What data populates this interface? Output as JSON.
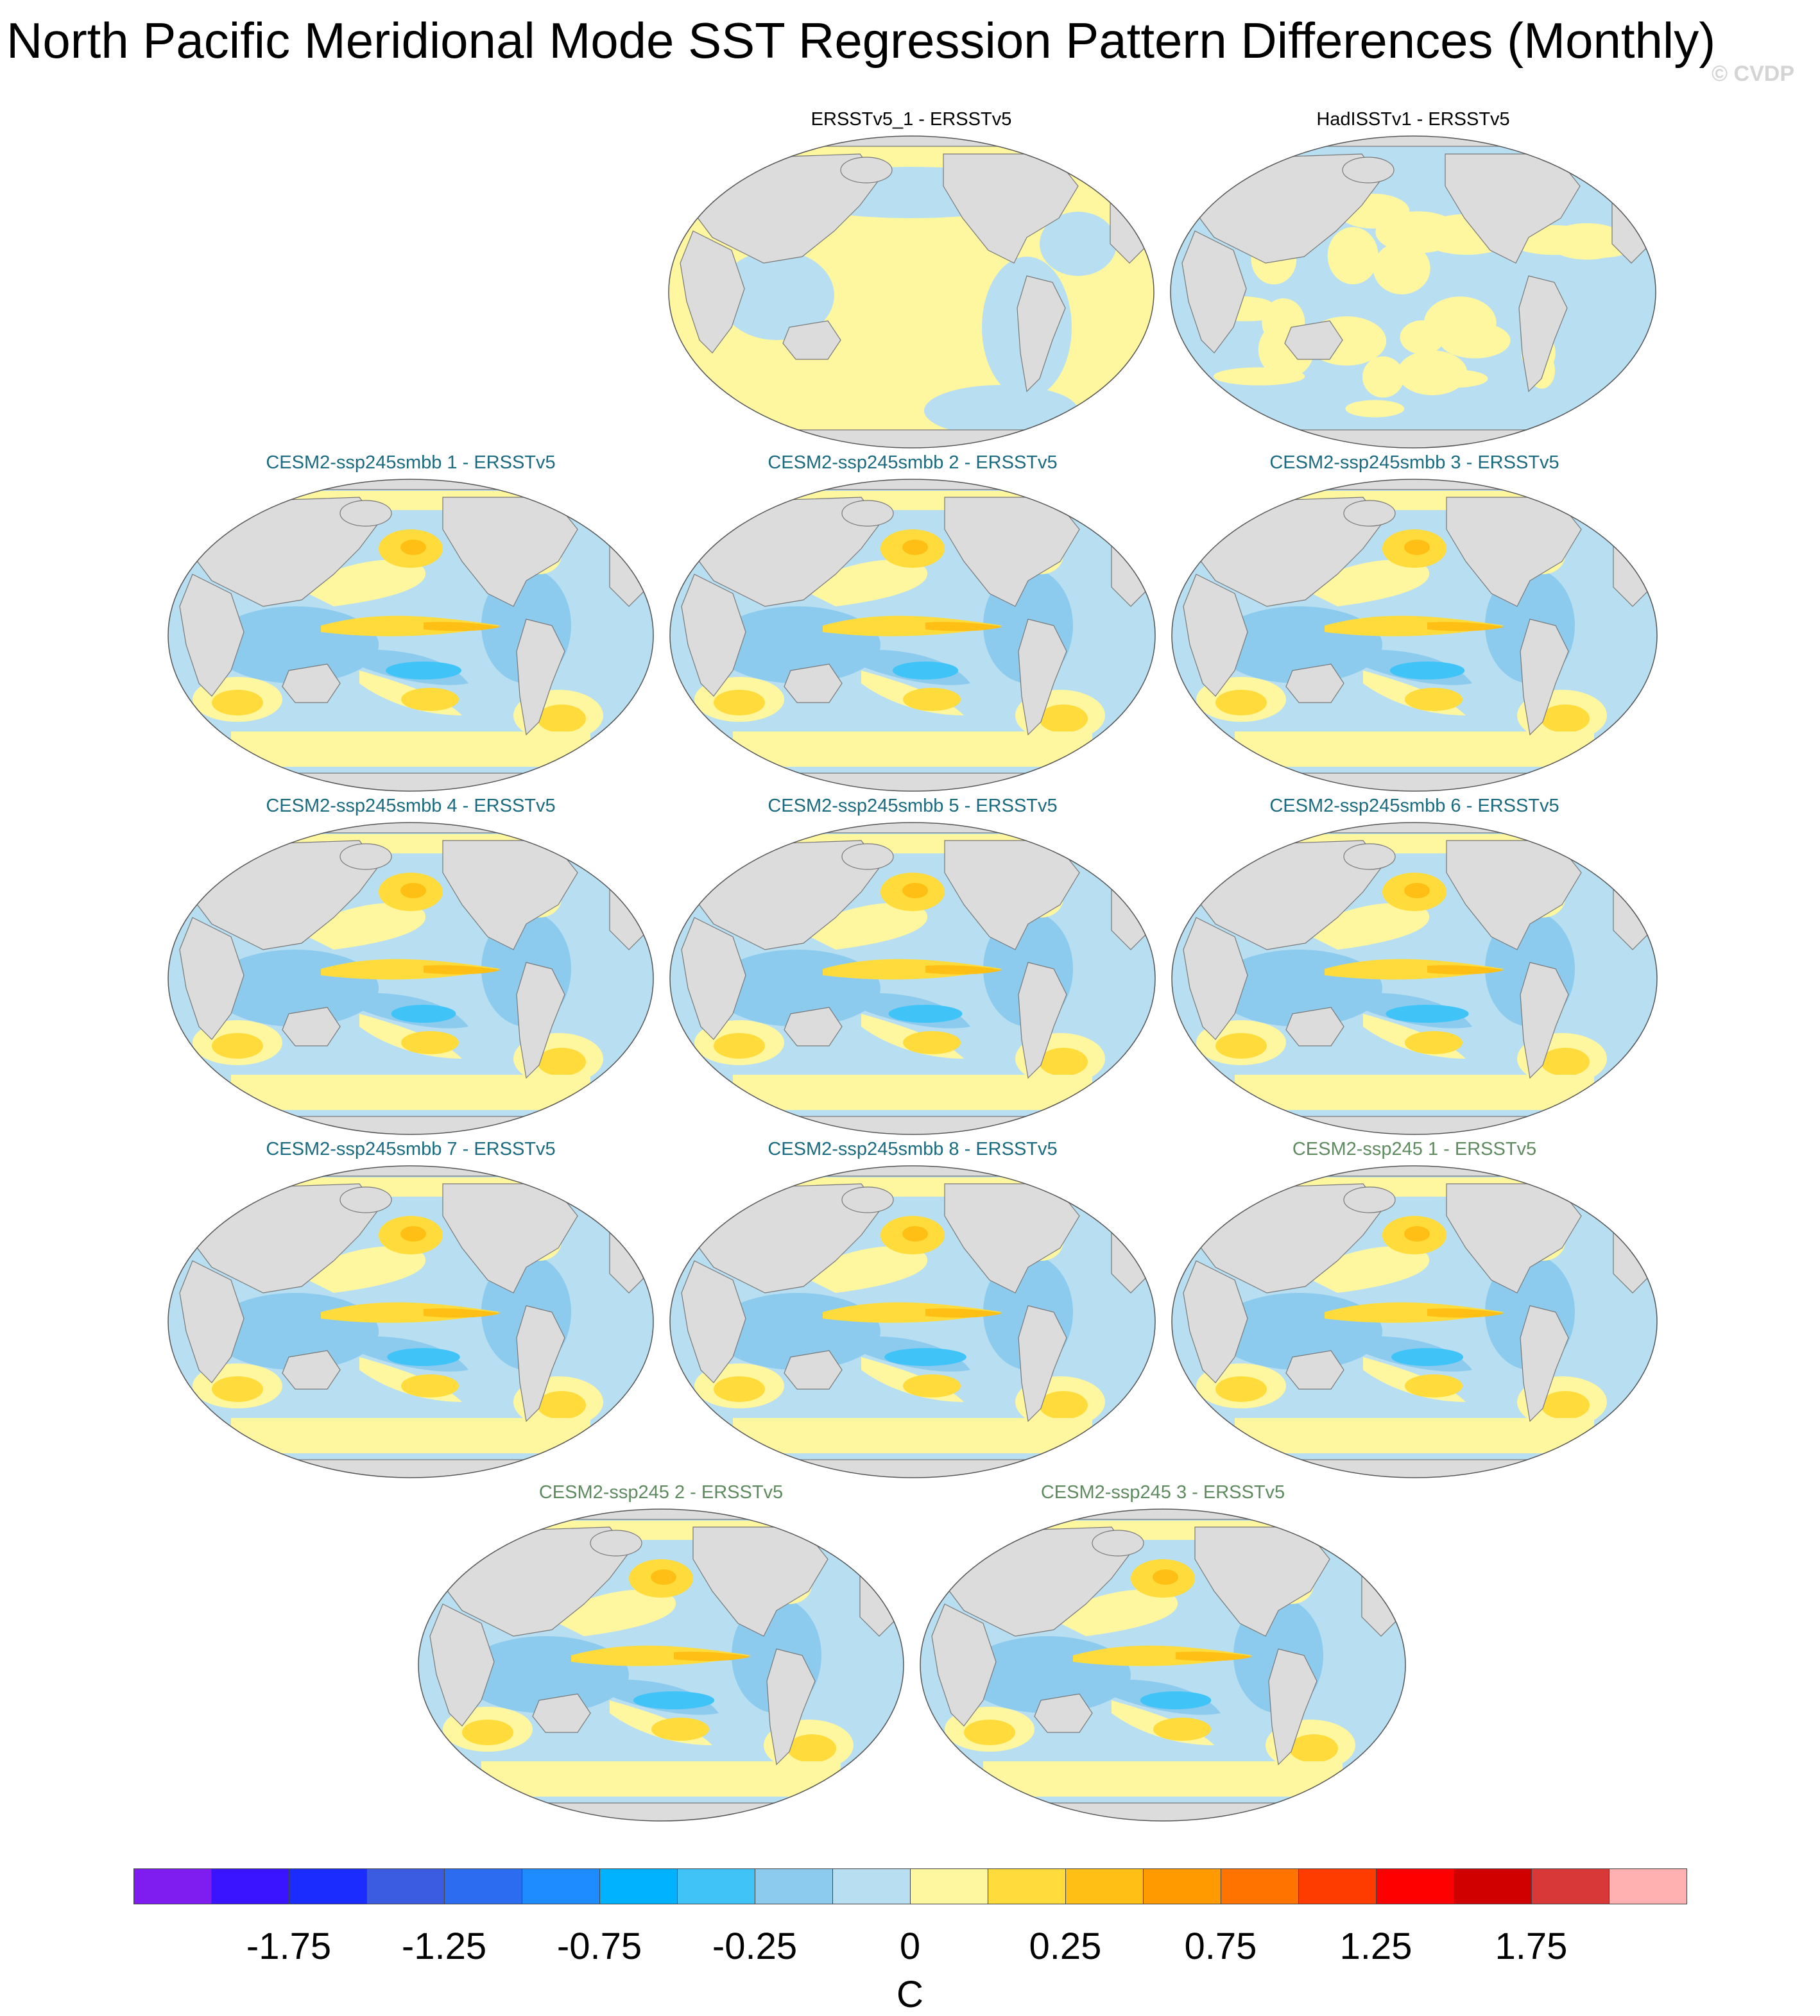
{
  "title": "North Pacific Meridional Mode SST Regression Pattern Differences (Monthly)",
  "watermark": "© CVDP",
  "colors": {
    "land": "#dcdcdc",
    "observed_title": "#000000",
    "smbb_title": "#1a6a80",
    "ssp245_title": "#5f8a5f"
  },
  "panels": [
    {
      "title": "ERSSTv5_1 - ERSSTv5",
      "group": "observed",
      "pattern": "flat_warm"
    },
    {
      "title": "HadISSTv1 - ERSSTv5",
      "group": "observed",
      "pattern": "patchy"
    },
    {
      "title": "CESM2-ssp245smbb 1 - ERSSTv5",
      "group": "smbb",
      "pattern": "npmm"
    },
    {
      "title": "CESM2-ssp245smbb 2 - ERSSTv5",
      "group": "smbb",
      "pattern": "npmm"
    },
    {
      "title": "CESM2-ssp245smbb 3 - ERSSTv5",
      "group": "smbb",
      "pattern": "npmm"
    },
    {
      "title": "CESM2-ssp245smbb 4 - ERSSTv5",
      "group": "smbb",
      "pattern": "npmm"
    },
    {
      "title": "CESM2-ssp245smbb 5 - ERSSTv5",
      "group": "smbb",
      "pattern": "npmm"
    },
    {
      "title": "CESM2-ssp245smbb 6 - ERSSTv5",
      "group": "smbb",
      "pattern": "npmm"
    },
    {
      "title": "CESM2-ssp245smbb 7 - ERSSTv5",
      "group": "smbb",
      "pattern": "npmm"
    },
    {
      "title": "CESM2-ssp245smbb 8 - ERSSTv5",
      "group": "smbb",
      "pattern": "npmm"
    },
    {
      "title": "CESM2-ssp245 1 - ERSSTv5",
      "group": "ssp245",
      "pattern": "npmm"
    },
    {
      "title": "CESM2-ssp245 2 - ERSSTv5",
      "group": "ssp245",
      "pattern": "npmm"
    },
    {
      "title": "CESM2-ssp245 3 - ERSSTv5",
      "group": "ssp245",
      "pattern": "npmm"
    }
  ],
  "colorbar": {
    "colors": [
      "#7f1cf0",
      "#3a14ff",
      "#1a2cff",
      "#3b5be0",
      "#2b6cf0",
      "#1e8cff",
      "#00b2ff",
      "#40c4f8",
      "#8ccaee",
      "#b8def2",
      "#fff6a0",
      "#ffdc3c",
      "#ffbf14",
      "#ff9a00",
      "#ff7300",
      "#ff3c00",
      "#ff0000",
      "#d00000",
      "#d83838",
      "#ffb0b0"
    ],
    "labels": [
      "-1.75",
      "-1.25",
      "-0.75",
      "-0.25",
      "0",
      "0.25",
      "0.75",
      "1.25",
      "1.75"
    ],
    "unit": "C"
  }
}
